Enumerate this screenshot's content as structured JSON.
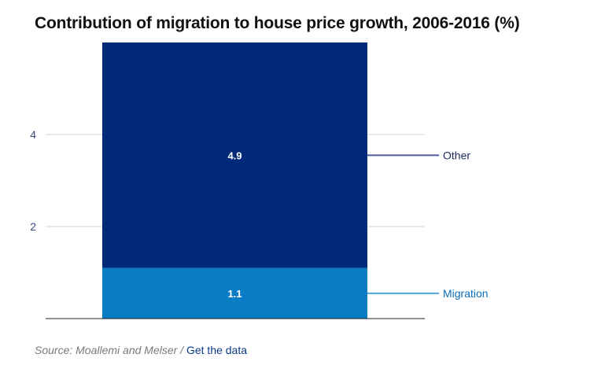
{
  "chart_data": {
    "type": "bar",
    "stacked": true,
    "title": "Contribution of migration to house price growth, 2006-2016 (%)",
    "categories": [
      ""
    ],
    "series": [
      {
        "name": "Migration",
        "values": [
          1.1
        ],
        "color": "#0a7cc6",
        "line_color": "#4fa6dc"
      },
      {
        "name": "Other",
        "values": [
          4.9
        ],
        "color": "#00297a",
        "line_color": "#4a5a9a"
      }
    ],
    "yticks": [
      2,
      4
    ],
    "ylim": [
      0,
      6
    ],
    "grid": true,
    "legend_placement": "right, inline labels"
  },
  "footer": {
    "source_text": "Source: Moallemi and Melser / ",
    "link_label": "Get the data"
  },
  "colors": {
    "axis_text": "#3a4a7a",
    "grid": "#c5d6e6",
    "baseline": "#222222"
  }
}
